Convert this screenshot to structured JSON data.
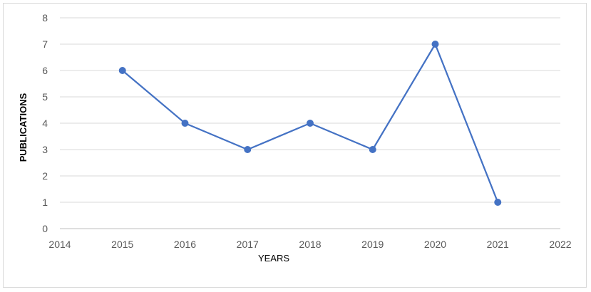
{
  "chart_data": {
    "type": "line",
    "title": "",
    "xlabel": "YEARS",
    "ylabel": "PUBLICATIONS",
    "xlim": [
      2014,
      2022
    ],
    "ylim": [
      0,
      8
    ],
    "x_ticks": [
      2014,
      2015,
      2016,
      2017,
      2018,
      2019,
      2020,
      2021,
      2022
    ],
    "y_ticks": [
      0,
      1,
      2,
      3,
      4,
      5,
      6,
      7,
      8
    ],
    "grid": true,
    "legend": "none",
    "series": [
      {
        "x": [
          2015,
          2016,
          2017,
          2018,
          2019,
          2020,
          2021
        ],
        "values": [
          6,
          4,
          3,
          4,
          3,
          7,
          1
        ],
        "color": "#4472C4"
      }
    ]
  }
}
